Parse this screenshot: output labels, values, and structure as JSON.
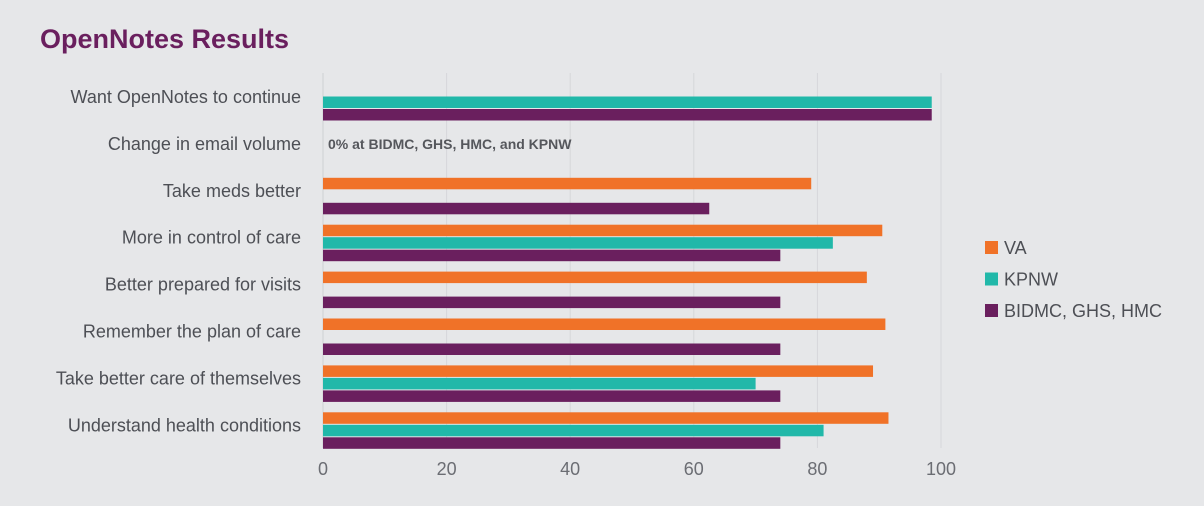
{
  "chart_data": {
    "type": "bar",
    "orientation": "horizontal",
    "title": "OpenNotes Results",
    "categories": [
      "Want OpenNotes to continue",
      "Change in email volume",
      "Take meds better",
      "More in control of care",
      "Better prepared for visits",
      "Remember the plan of care",
      "Take better care of themselves",
      "Understand health conditions"
    ],
    "series": [
      {
        "name": "VA",
        "color": "#f07228",
        "values": [
          null,
          null,
          79,
          90.5,
          88,
          91,
          89,
          91.5
        ]
      },
      {
        "name": "KPNW",
        "color": "#21b8a9",
        "values": [
          98.5,
          null,
          null,
          82.5,
          null,
          null,
          70,
          81
        ]
      },
      {
        "name": "BIDMC, GHS, HMC",
        "color": "#6a1f5e",
        "values": [
          98.5,
          null,
          62.5,
          74,
          74,
          74,
          74,
          74
        ]
      }
    ],
    "annotations": [
      {
        "category": "Change in email volume",
        "text": "0% at BIDMC, GHS, HMC, and KPNW"
      }
    ],
    "xlim": [
      0,
      100
    ],
    "xticks": [
      0,
      20,
      40,
      60,
      80,
      100
    ],
    "grid": true,
    "legend": "right"
  }
}
